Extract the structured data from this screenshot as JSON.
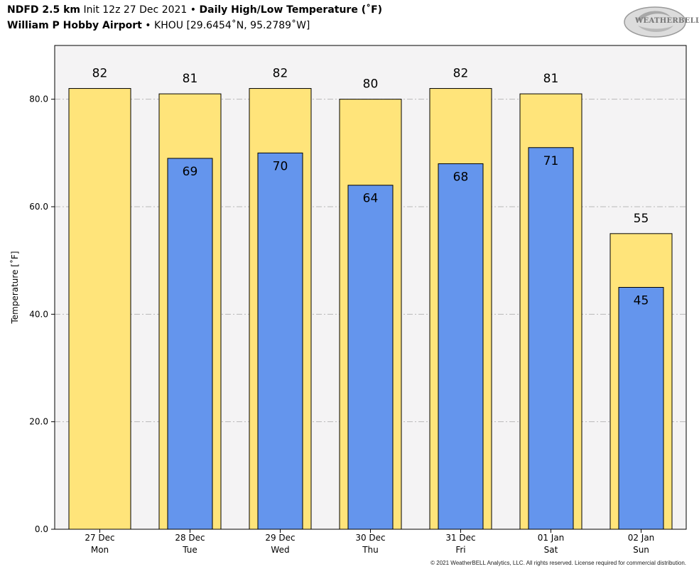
{
  "header": {
    "model": "NDFD 2.5 km",
    "init": "Init 12z 27 Dec 2021",
    "bullet": "•",
    "title": "Daily High/Low Temperature (˚F)",
    "station": "William P Hobby Airport",
    "station_info": "KHOU [29.6454˚N, 95.2789˚W]"
  },
  "logo": {
    "text": "WEATHERBELL"
  },
  "copyright": "© 2021 WeatherBELL Analytics, LLC. All rights reserved. License required for commercial distribution.",
  "chart_data": {
    "type": "bar",
    "title": "Daily High/Low Temperature (˚F)",
    "ylabel": "Temperature [˚F]",
    "xlabel": "",
    "ylim": [
      0,
      90
    ],
    "yticks": [
      0,
      20,
      40,
      60,
      80
    ],
    "ytick_labels": [
      "0.0",
      "20.0",
      "40.0",
      "60.0",
      "80.0"
    ],
    "grid": true,
    "categories": [
      "27 Dec",
      "28 Dec",
      "29 Dec",
      "30 Dec",
      "31 Dec",
      "01 Jan",
      "02 Jan"
    ],
    "days": [
      "Mon",
      "Tue",
      "Wed",
      "Thu",
      "Fri",
      "Sat",
      "Sun"
    ],
    "series": [
      {
        "name": "High",
        "color": "#FFE47A",
        "values": [
          82,
          81,
          82,
          80,
          82,
          81,
          55
        ]
      },
      {
        "name": "Low",
        "color": "#6495ED",
        "values": [
          null,
          69,
          70,
          64,
          68,
          71,
          45
        ]
      }
    ],
    "plot_background": "#F4F3F4"
  }
}
